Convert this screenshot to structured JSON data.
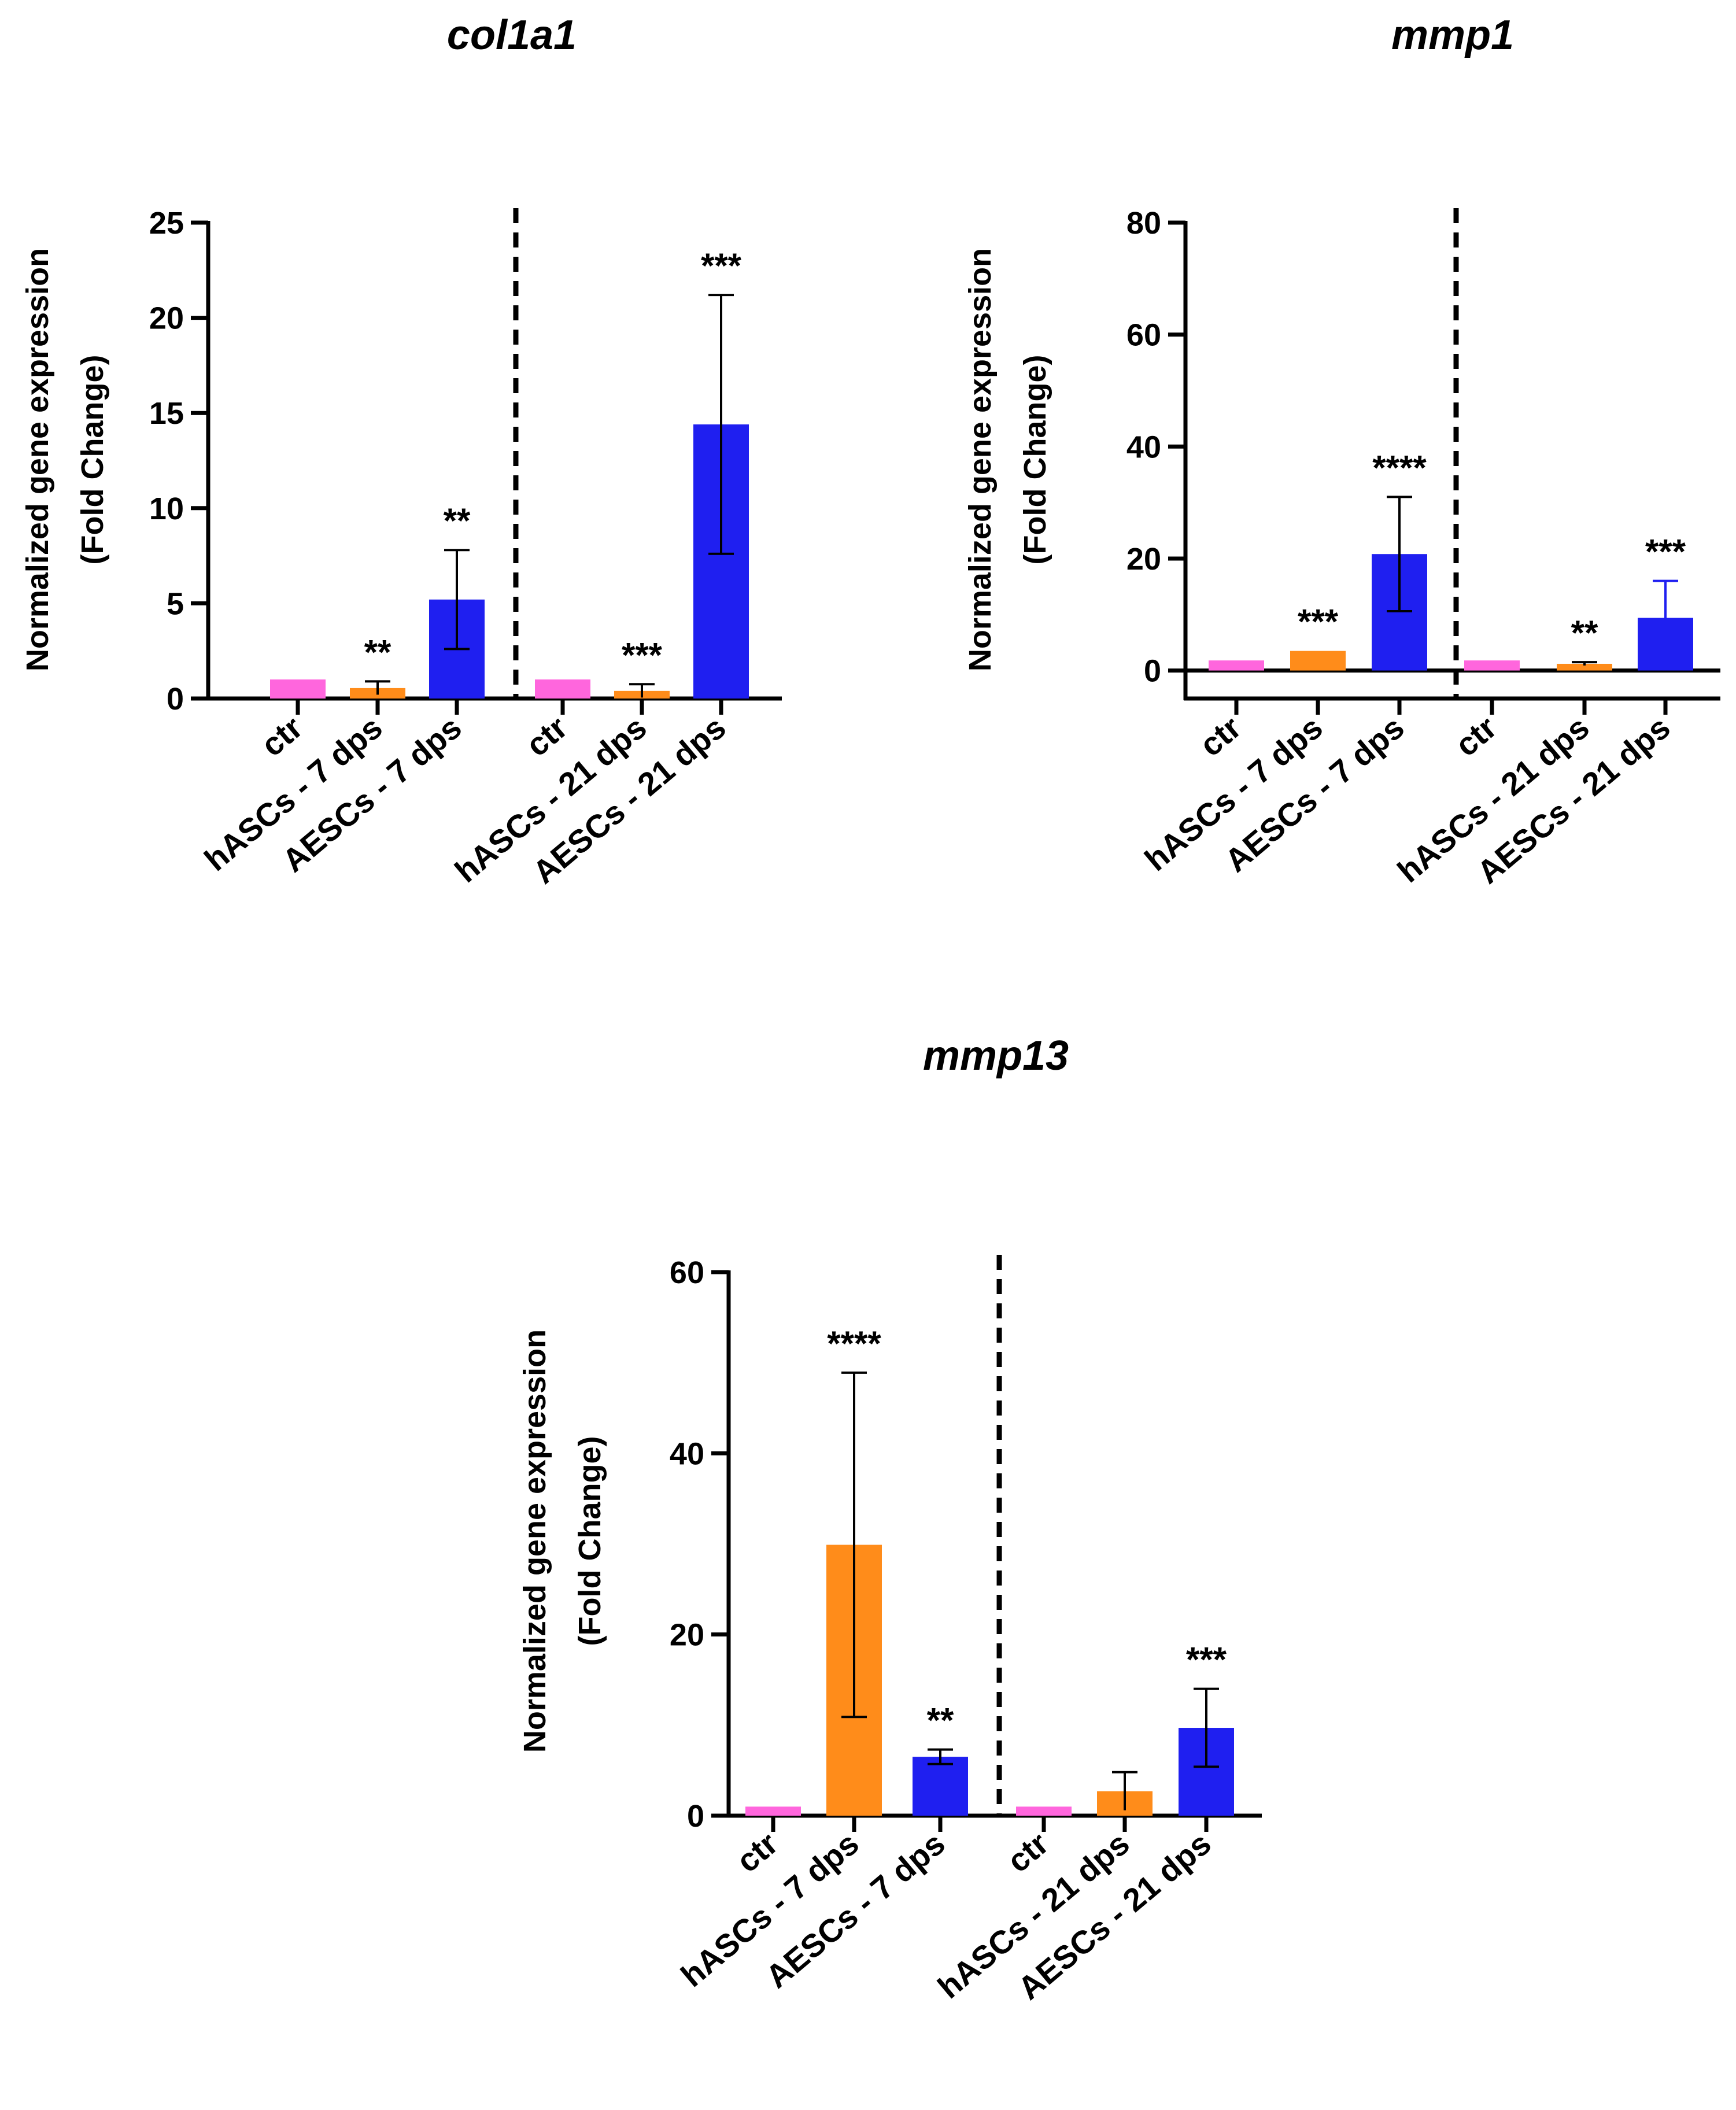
{
  "chart_data": [
    {
      "type": "bar",
      "title": "col1a1",
      "ylabel_line1": "Normalized gene expression",
      "ylabel_line2": "(Fold Change)",
      "ylim": [
        0,
        25
      ],
      "yticks": [
        0,
        5,
        10,
        15,
        20,
        25
      ],
      "categories": [
        "ctr",
        "hASCs - 7 dps",
        "AESCs - 7 dps",
        "ctr",
        "hASCs - 21 dps",
        "AESCs - 21 dps"
      ],
      "values": [
        1.0,
        0.55,
        5.2,
        1.0,
        0.4,
        14.4
      ],
      "errors": [
        0,
        0.35,
        2.6,
        0,
        0.35,
        6.8
      ],
      "significance": [
        "",
        "**",
        "**",
        "",
        "***",
        "***"
      ],
      "colors": [
        "#FF66DD",
        "#FF8C1A",
        "#1F1FF0",
        "#FF66DD",
        "#FF8C1A",
        "#1F1FF0"
      ]
    },
    {
      "type": "bar",
      "title": "mmp1",
      "ylabel_line1": "Normalized gene expression",
      "ylabel_line2": "(Fold Change)",
      "ylim": [
        -5,
        80
      ],
      "yticks": [
        0,
        20,
        40,
        60,
        80
      ],
      "categories": [
        "ctr",
        "hASCs - 7 dps",
        "AESCs - 7 dps",
        "ctr",
        "hASCs - 21 dps",
        "AESCs - 21 dps"
      ],
      "values": [
        1.8,
        3.5,
        20.8,
        1.8,
        1.2,
        9.4
      ],
      "errors": [
        0,
        0,
        10.2,
        0,
        0.3,
        6.6
      ],
      "significance": [
        "",
        "***",
        "****",
        "",
        "**",
        "***"
      ],
      "colors": [
        "#FF66DD",
        "#FF8C1A",
        "#1F1FF0",
        "#FF66DD",
        "#FF8C1A",
        "#1F1FF0"
      ]
    },
    {
      "type": "bar",
      "title": "mmp13",
      "ylabel_line1": "Normalized gene expression",
      "ylabel_line2": "(Fold Change)",
      "ylim": [
        0,
        60
      ],
      "yticks": [
        0,
        20,
        40,
        60
      ],
      "categories": [
        "ctr",
        "hASCs - 7 dps",
        "AESCs - 7 dps",
        "ctr",
        "hASCs - 21 dps",
        "AESCs - 21 dps"
      ],
      "values": [
        1.0,
        29.9,
        6.5,
        1.0,
        2.7,
        9.7
      ],
      "errors": [
        0,
        19.0,
        0.8,
        0,
        2.1,
        4.3
      ],
      "significance": [
        "",
        "****",
        "**",
        "",
        "",
        "***"
      ],
      "colors": [
        "#FF66DD",
        "#FF8C1A",
        "#1F1FF0",
        "#FF66DD",
        "#FF8C1A",
        "#1F1FF0"
      ]
    }
  ]
}
